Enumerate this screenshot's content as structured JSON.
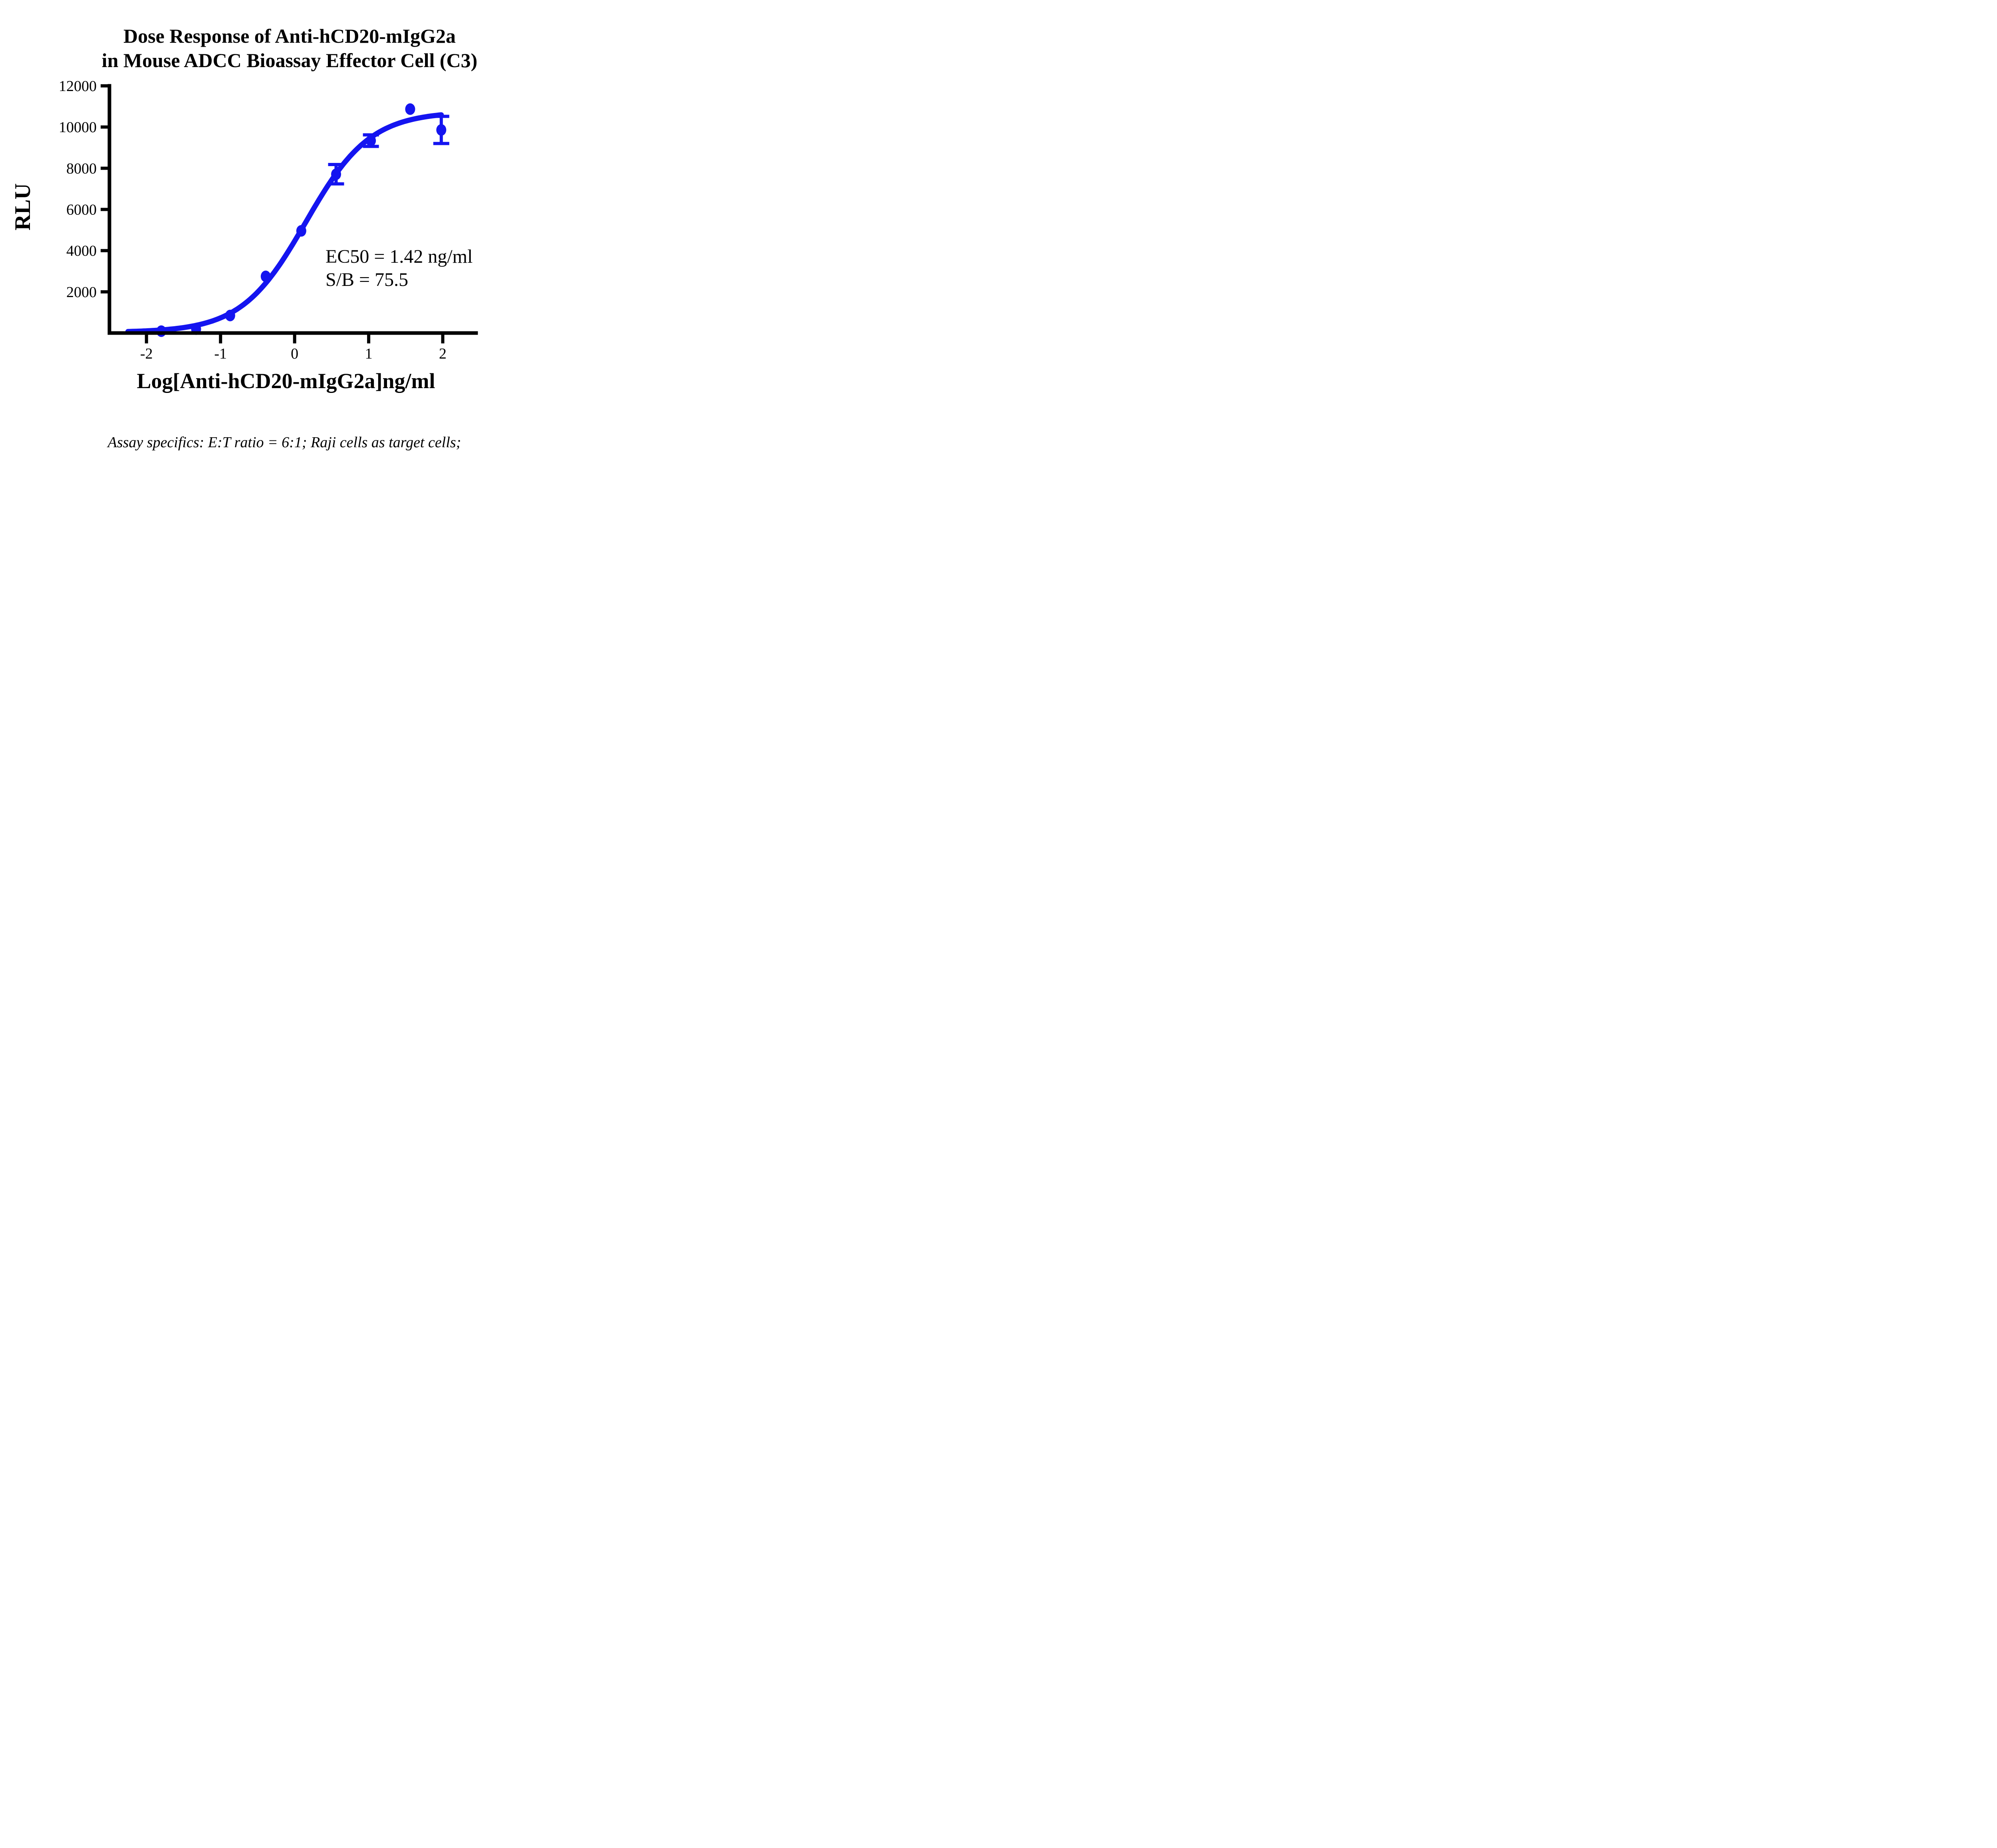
{
  "figure": {
    "title_line1": "Dose Response of Anti-hCD20-mIgG2a",
    "title_line2": "in Mouse ADCC Bioassay Effector Cell (C3)",
    "caption": "Assay specifics: E:T ratio = 6:1; Raji cells as target cells;"
  },
  "chart_data": {
    "type": "scatter",
    "title": "Dose Response of Anti-hCD20-mIgG2a in Mouse ADCC Bioassay Effector Cell (C3)",
    "xlabel": "Log[Anti-hCD20-mIgG2a]ng/ml",
    "ylabel": "RLU",
    "xlim": [
      -2.5,
      2.45
    ],
    "ylim": [
      0,
      12000
    ],
    "grid": false,
    "legend_position": "none",
    "x_tick_values": [
      -2,
      -1,
      0,
      1,
      2
    ],
    "x_tick_labels": [
      "-2",
      "-1",
      "0",
      "1",
      "2"
    ],
    "y_tick_values": [
      2000,
      4000,
      6000,
      8000,
      10000,
      12000
    ],
    "y_tick_labels": [
      "2000",
      "4000",
      "6000",
      "8000",
      "10000",
      "12000"
    ],
    "series": [
      {
        "name": "Anti-hCD20-mIgG2a",
        "color": "#1414f0",
        "marker": "filled-circle",
        "x": [
          -1.8,
          -1.33,
          -0.87,
          -0.39,
          0.09,
          0.56,
          1.03,
          1.56,
          1.98
        ],
        "y": [
          90,
          190,
          850,
          2750,
          4960,
          7710,
          9340,
          10870,
          9860
        ],
        "yerr": [
          0,
          0,
          0,
          0,
          0,
          470,
          280,
          0,
          660
        ]
      }
    ],
    "fit_curve": {
      "model": "4PL sigmoid",
      "bottom": 30,
      "top": 10750,
      "logEC50": 0.152,
      "hillslope": 1.0,
      "x_start": -2.25,
      "x_end": 1.985
    },
    "annotations": {
      "ec50": "EC50 = 1.42 ng/ml",
      "sb": "S/B = 75.5"
    },
    "ec50_ng_ml": 1.42,
    "signal_to_background": 75.5
  }
}
